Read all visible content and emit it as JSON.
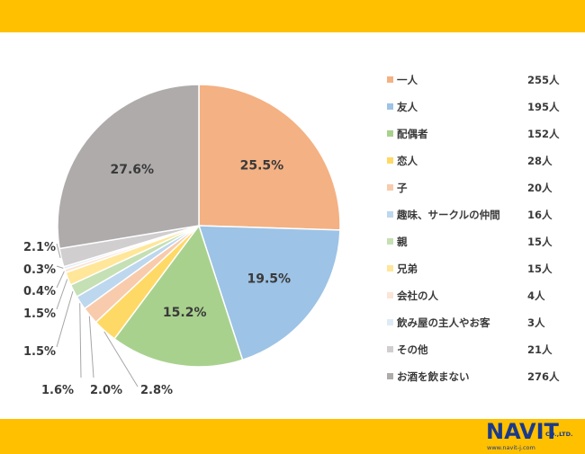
{
  "colors": {
    "header_bar": "#FFC000",
    "footer_bar": "#FFC000",
    "logo_text": "#1a3a8a"
  },
  "chart_data": {
    "type": "pie",
    "start_angle_degrees": 0,
    "direction": "clockwise",
    "legend_position": "right",
    "slices": [
      {
        "label": "一人",
        "count": "255人",
        "value": 25.5,
        "value_label": "25.5%",
        "color": "#F4B183",
        "label_inside": true
      },
      {
        "label": "友人",
        "count": "195人",
        "value": 19.5,
        "value_label": "19.5%",
        "color": "#9DC3E6",
        "label_inside": true
      },
      {
        "label": "配偶者",
        "count": "152人",
        "value": 15.2,
        "value_label": "15.2%",
        "color": "#A9D18E",
        "label_inside": true
      },
      {
        "label": "恋人",
        "count": "28人",
        "value": 2.8,
        "value_label": "2.8%",
        "color": "#FFD966",
        "label_inside": false
      },
      {
        "label": "子",
        "count": "20人",
        "value": 2.0,
        "value_label": "2.0%",
        "color": "#F8CBAD",
        "label_inside": false
      },
      {
        "label": "趣味、サークルの仲間",
        "count": "16人",
        "value": 1.6,
        "value_label": "1.6%",
        "color": "#BDD7EE",
        "label_inside": false
      },
      {
        "label": "親",
        "count": "15人",
        "value": 1.5,
        "value_label": "1.5%",
        "color": "#C5E0B4",
        "label_inside": false
      },
      {
        "label": "兄弟",
        "count": "15人",
        "value": 1.5,
        "value_label": "1.5%",
        "color": "#FFE699",
        "label_inside": false
      },
      {
        "label": "会社の人",
        "count": "4人",
        "value": 0.4,
        "value_label": "0.4%",
        "color": "#FBE5D6",
        "label_inside": false
      },
      {
        "label": "飲み屋の主人やお客",
        "count": "3人",
        "value": 0.3,
        "value_label": "0.3%",
        "color": "#DEEBF7",
        "label_inside": false
      },
      {
        "label": "その他",
        "count": "21人",
        "value": 2.1,
        "value_label": "2.1%",
        "color": "#D0CECE",
        "label_inside": false
      },
      {
        "label": "お酒を飲まない",
        "count": "276人",
        "value": 27.6,
        "value_label": "27.6%",
        "color": "#AFABAB",
        "label_inside": true
      }
    ]
  },
  "logo": {
    "word": "NAVIT",
    "company_suffix": "CO.,LTD.",
    "url": "www.navit-j.com"
  }
}
